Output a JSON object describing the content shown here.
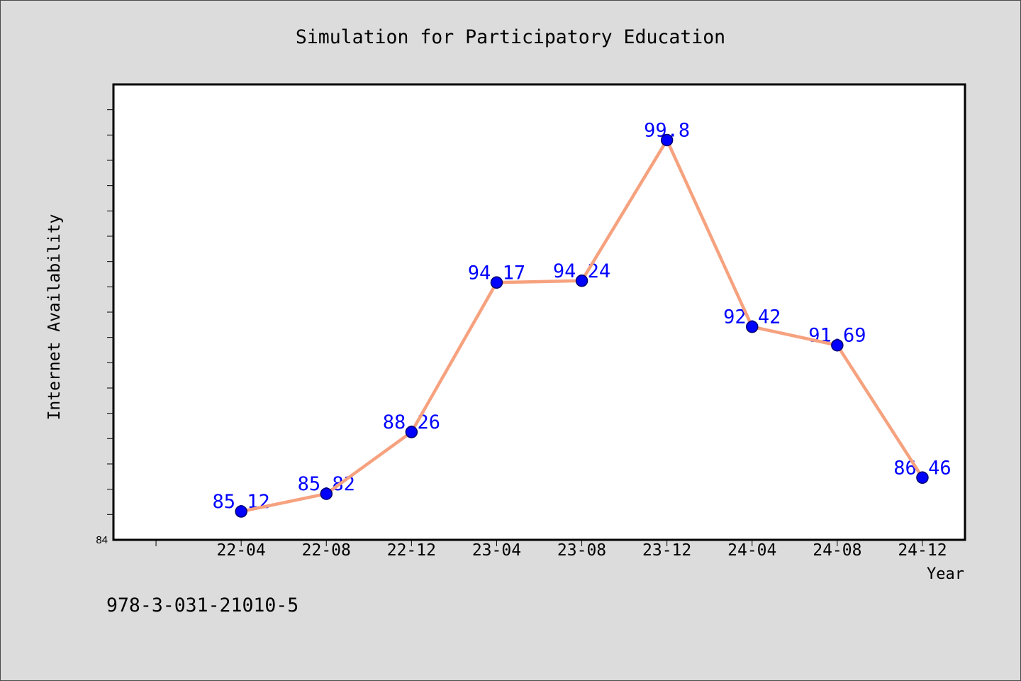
{
  "chart_data": {
    "type": "line",
    "title": "Simulation for Participatory Education",
    "xlabel": "Year",
    "ylabel": "Internet Availability",
    "categories": [
      "22-04",
      "22-08",
      "22-12",
      "23-04",
      "23-08",
      "23-12",
      "24-04",
      "24-08",
      "24-12"
    ],
    "series": [
      {
        "values": [
          85.12,
          85.82,
          88.26,
          94.17,
          94.24,
          99.8,
          92.42,
          91.69,
          86.46
        ],
        "data_labels": true
      }
    ],
    "ylim": [
      84,
      102
    ],
    "yticks": [
      84
    ],
    "grid": false,
    "legend": "none",
    "colors": {
      "figure_background": "#dcdcdc",
      "plot_background": "#ffffff",
      "line": "#f6a27f",
      "marker": "#0000ff",
      "marker_edge": "#00006e",
      "data_label": "#0000ff"
    }
  },
  "footer": {
    "isbn": "978-3-031-21010-5"
  }
}
